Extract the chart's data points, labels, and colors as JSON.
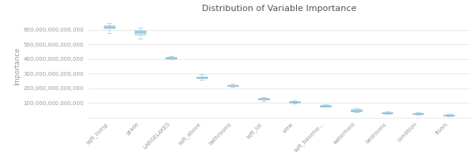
{
  "title": "Distribution of Variable Importance",
  "ylabel": "Importance",
  "categories": [
    "sqft_living",
    "grade",
    "LARGELAKES",
    "sqft_above",
    "bathrooms",
    "sqft_lot",
    "view",
    "sqft_baseme...",
    "waterfront",
    "bedrooms",
    "condition",
    "floors"
  ],
  "box_data": [
    {
      "med": 622000000000000,
      "q1": 607000000000000,
      "q3": 632000000000000,
      "whislo": 578000000000000,
      "whishi": 648000000000000
    },
    {
      "med": 587000000000000,
      "q1": 568000000000000,
      "q3": 597000000000000,
      "whislo": 540000000000000,
      "whishi": 614000000000000
    },
    {
      "med": 408000000000000,
      "q1": 401000000000000,
      "q3": 416000000000000,
      "whislo": 396000000000000,
      "whishi": 422000000000000
    },
    {
      "med": 275000000000000,
      "q1": 267000000000000,
      "q3": 282000000000000,
      "whislo": 256000000000000,
      "whishi": 295000000000000
    },
    {
      "med": 218000000000000,
      "q1": 213000000000000,
      "q3": 223000000000000,
      "whislo": 207000000000000,
      "whishi": 229000000000000
    },
    {
      "med": 128000000000000,
      "q1": 122000000000000,
      "q3": 135000000000000,
      "whislo": 115000000000000,
      "whishi": 141000000000000
    },
    {
      "med": 108000000000000,
      "q1": 103000000000000,
      "q3": 113000000000000,
      "whislo": 98000000000000,
      "whishi": 118000000000000
    },
    {
      "med": 82000000000000,
      "q1": 77000000000000,
      "q3": 87000000000000,
      "whislo": 72000000000000,
      "whishi": 92000000000000
    },
    {
      "med": 50000000000000,
      "q1": 44000000000000,
      "q3": 57000000000000,
      "whislo": 38000000000000,
      "whishi": 63000000000000
    },
    {
      "med": 34000000000000,
      "q1": 29000000000000,
      "q3": 39000000000000,
      "whislo": 24000000000000,
      "whishi": 44000000000000
    },
    {
      "med": 28000000000000,
      "q1": 24000000000000,
      "q3": 33000000000000,
      "whislo": 20000000000000,
      "whishi": 37000000000000
    },
    {
      "med": 18000000000000,
      "q1": 14000000000000,
      "q3": 23000000000000,
      "whislo": 10000000000000,
      "whishi": 27000000000000
    }
  ],
  "box_color": "#b8d9e8",
  "median_color": "#85b8d0",
  "whisker_color": "#9fcde0",
  "cap_color": "#9fcde0",
  "background_color": "#ffffff",
  "grid_color": "#e0e0e0",
  "text_color": "#999999",
  "ylim": [
    0,
    700000000000000
  ],
  "yticks": [
    100000000000000,
    200000000000000,
    300000000000000,
    400000000000000,
    500000000000000,
    600000000000000
  ],
  "ytick_labels": [
    "100,000,000,000,000",
    "200,000,000,000,000",
    "300,000,000,000,000",
    "400,000,000,000,000",
    "500,000,000,000,000",
    "600,000,000,000,000"
  ],
  "title_fontsize": 8,
  "tick_fontsize": 5,
  "ylabel_fontsize": 6
}
